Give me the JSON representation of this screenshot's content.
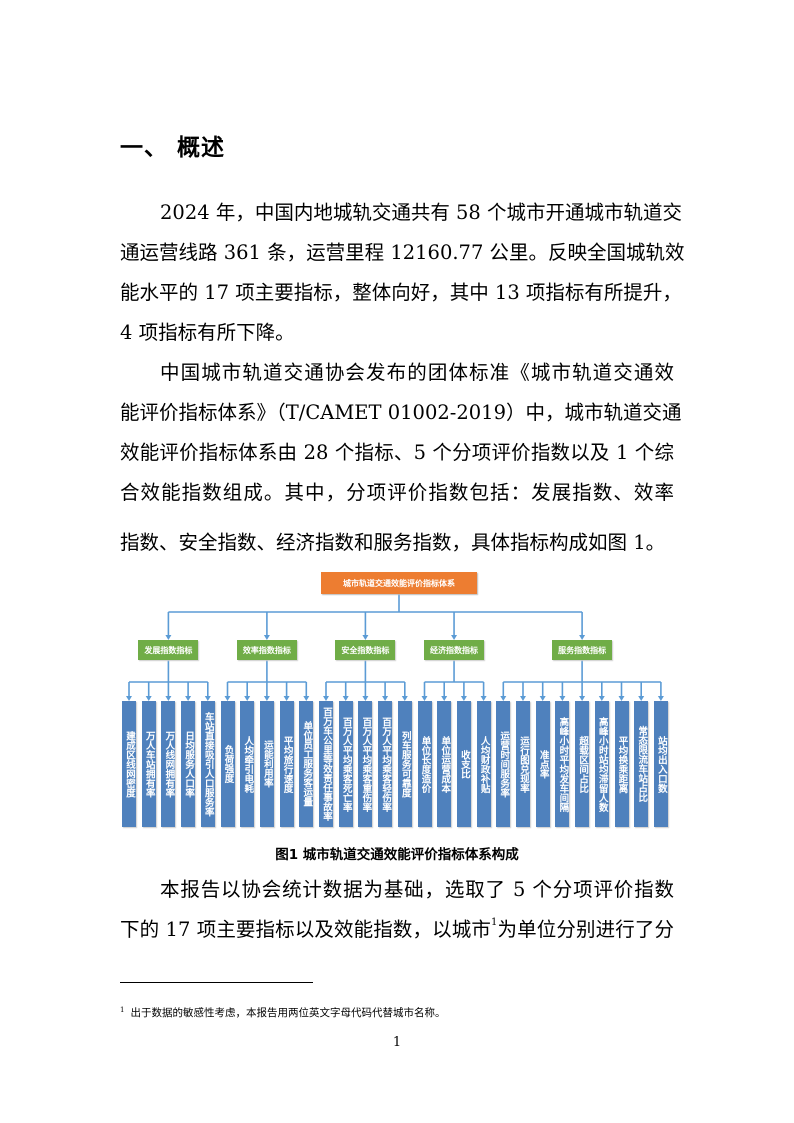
{
  "heading": "一、 概述",
  "paragraphs": [
    {
      "lines": [
        "2024 年，中国内地城轨交通共有 58 个城市开通城市轨道交",
        "通运营线路 361 条，运营里程 12160.77 公里。反映全国城轨效",
        "能水平的 17 项主要指标，整体向好，其中 13 项指标有所提升，",
        "4 项指标有所下降。"
      ]
    },
    {
      "lines": [
        "中国城市轨道交通协会发布的团体标准《城市轨道交通效",
        "能评价指标体系》（T/CAMET  01002-2019）中，城市轨道交通",
        "效能评价指标体系由 28 个指标、5 个分项评价指数以及 1 个综",
        "合效能指数组成。其中，分项评价指数包括：发展指数、效率",
        "指数、安全指数、经济指数和服务指数，具体指标构成如图 1。"
      ]
    },
    {
      "lines": [
        "本报告以协会统计数据为基础，选取了 5 个分项评价指数",
        "下的 17 项主要指标以及效能指数，以城市",
        "为单位分别进行了分"
      ],
      "footnote_ref": "1"
    }
  ],
  "diagram": {
    "root": "城市轨道交通效能评价指标体系",
    "colors": {
      "root": "#ed7d31",
      "category": "#70ad47",
      "indicator": "#4f81bd",
      "connector": "#5b9bd5"
    },
    "categories": [
      {
        "label": "发展指数指标",
        "items": [
          "建成区线网密度",
          "万人车站拥有率",
          "万人线网拥有率",
          "日均服务人口率",
          "车站直接吸引人口服务率"
        ]
      },
      {
        "label": "效率指数指标",
        "items": [
          "负荷强度",
          "人均牵引电耗",
          "运能利用率",
          "平均旅行速度",
          "单位员工服务客运量"
        ]
      },
      {
        "label": "安全指数指标",
        "items": [
          "百万车公里等效责任事故率",
          "百万人平均乘客死亡率",
          "百万人平均乘客重伤率",
          "百万人平均乘客轻伤率",
          "列车服务可靠度"
        ]
      },
      {
        "label": "经济指数指标",
        "items": [
          "单位长度造价",
          "单位运营成本",
          "收支比",
          "人均财政补贴"
        ]
      },
      {
        "label": "服务指数指标",
        "items": [
          "运营时间服务率",
          "运行图兑现率",
          "准点率",
          "高峰小时平均发车间隔",
          "超载区间占比",
          "高峰小时站均滞留人数",
          "平均换乘距离",
          "常态限流车站占比",
          "站均出入口数"
        ]
      }
    ]
  },
  "caption": "图1   城市轨道交通效能评价指标体系构成",
  "footnote": {
    "mark": "1",
    "text": "出于数据的敏感性考虑，本报告用两位英文字母代码代替城市名称。"
  },
  "page_number": "1"
}
